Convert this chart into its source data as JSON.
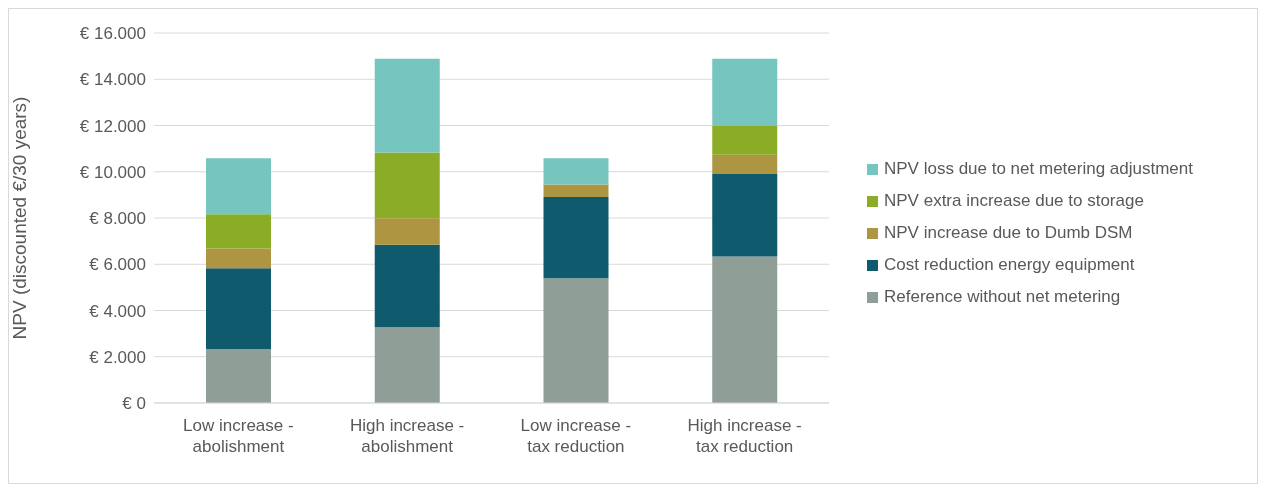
{
  "chart_data": {
    "type": "bar",
    "stacked": true,
    "ylabel": "NPV (discounted €/30 years)",
    "categories": [
      "Low increase - abolishment",
      "High increase - abolishment",
      "Low increase - tax reduction",
      "High increase - tax reduction"
    ],
    "series": [
      {
        "name": "Reference without net metering",
        "color": "#8f9e96",
        "values": [
          2330,
          3280,
          5400,
          6340
        ]
      },
      {
        "name": "Cost reduction energy equipment",
        "color": "#0f5a6c",
        "values": [
          3500,
          3560,
          3510,
          3560
        ]
      },
      {
        "name": "NPV increase due to Dumb DSM",
        "color": "#ad9541",
        "values": [
          850,
          1150,
          540,
          830
        ]
      },
      {
        "name": "NPV extra increase due to storage",
        "color": "#8aac27",
        "values": [
          1480,
          2840,
          0,
          1250
        ]
      },
      {
        "name": "NPV loss due to net metering adjustment",
        "color": "#76c5bf",
        "values": [
          2420,
          4060,
          1130,
          2910
        ]
      }
    ],
    "ylim": [
      0,
      16000
    ],
    "yticks": [
      {
        "value": 0,
        "label": "€ 0"
      },
      {
        "value": 2000,
        "label": "€ 2.000"
      },
      {
        "value": 4000,
        "label": "€ 4.000"
      },
      {
        "value": 6000,
        "label": "€ 6.000"
      },
      {
        "value": 8000,
        "label": "€ 8.000"
      },
      {
        "value": 10000,
        "label": "€ 10.000"
      },
      {
        "value": 12000,
        "label": "€ 12.000"
      },
      {
        "value": 14000,
        "label": "€ 14.000"
      },
      {
        "value": 16000,
        "label": "€ 16.000"
      }
    ],
    "grid": "y",
    "legend": "right"
  }
}
